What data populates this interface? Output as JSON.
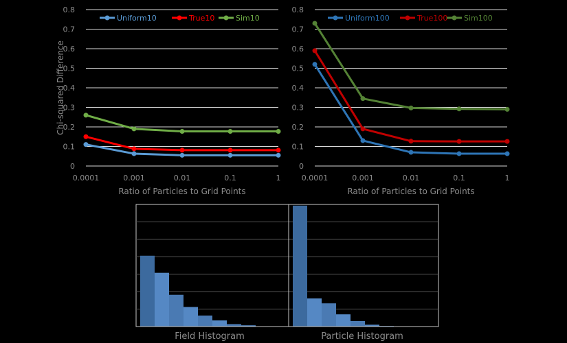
{
  "chart_data": [
    {
      "type": "line",
      "x": [
        "0.0001",
        "0.001",
        "0.01",
        "0.1",
        "1"
      ],
      "xlabel": "Ratio of Particles to Grid Points",
      "ylabel": "Chi-squared Difference",
      "ylim": [
        0,
        0.8
      ],
      "yticks": [
        "0",
        "0.1",
        "0.2",
        "0.3",
        "0.4",
        "0.5",
        "0.6",
        "0.7",
        "0.8"
      ],
      "grid": true,
      "legend": "top",
      "series": [
        {
          "name": "Uniform10",
          "color": "#5b9bd5",
          "values": [
            0.11,
            0.063,
            0.055,
            0.055,
            0.055
          ]
        },
        {
          "name": "True10",
          "color": "#ff0000",
          "values": [
            0.15,
            0.088,
            0.081,
            0.081,
            0.081
          ]
        },
        {
          "name": "Sim10",
          "color": "#70ad47",
          "values": [
            0.26,
            0.19,
            0.177,
            0.177,
            0.177
          ]
        }
      ]
    },
    {
      "type": "line",
      "x": [
        "0.0001",
        "0.001",
        "0.01",
        "0.1",
        "1"
      ],
      "xlabel": "Ratio of Particles to Grid Points",
      "ylabel": "",
      "ylim": [
        0,
        0.8
      ],
      "yticks": [
        "0",
        "0.1",
        "0.2",
        "0.3",
        "0.4",
        "0.5",
        "0.6",
        "0.7",
        "0.8"
      ],
      "grid": true,
      "legend": "top",
      "series": [
        {
          "name": "Uniform100",
          "color": "#2e75b6",
          "values": [
            0.52,
            0.13,
            0.07,
            0.063,
            0.063
          ]
        },
        {
          "name": "True100",
          "color": "#c00000",
          "values": [
            0.59,
            0.19,
            0.127,
            0.126,
            0.126
          ]
        },
        {
          "name": "Sim100",
          "color": "#548235",
          "values": [
            0.73,
            0.345,
            0.297,
            0.292,
            0.29
          ]
        }
      ]
    },
    {
      "type": "bar",
      "title": "Field Histogram",
      "values": [
        0.58,
        0.44,
        0.26,
        0.16,
        0.09,
        0.05,
        0.02,
        0.01
      ],
      "ylim": [
        0,
        1
      ],
      "color": "#4f81bd"
    },
    {
      "type": "bar",
      "title": "Particle Histogram",
      "values": [
        0.99,
        0.23,
        0.19,
        0.1,
        0.045,
        0.015,
        0.005,
        0.002
      ],
      "ylim": [
        0,
        1
      ],
      "color": "#4f81bd"
    }
  ]
}
